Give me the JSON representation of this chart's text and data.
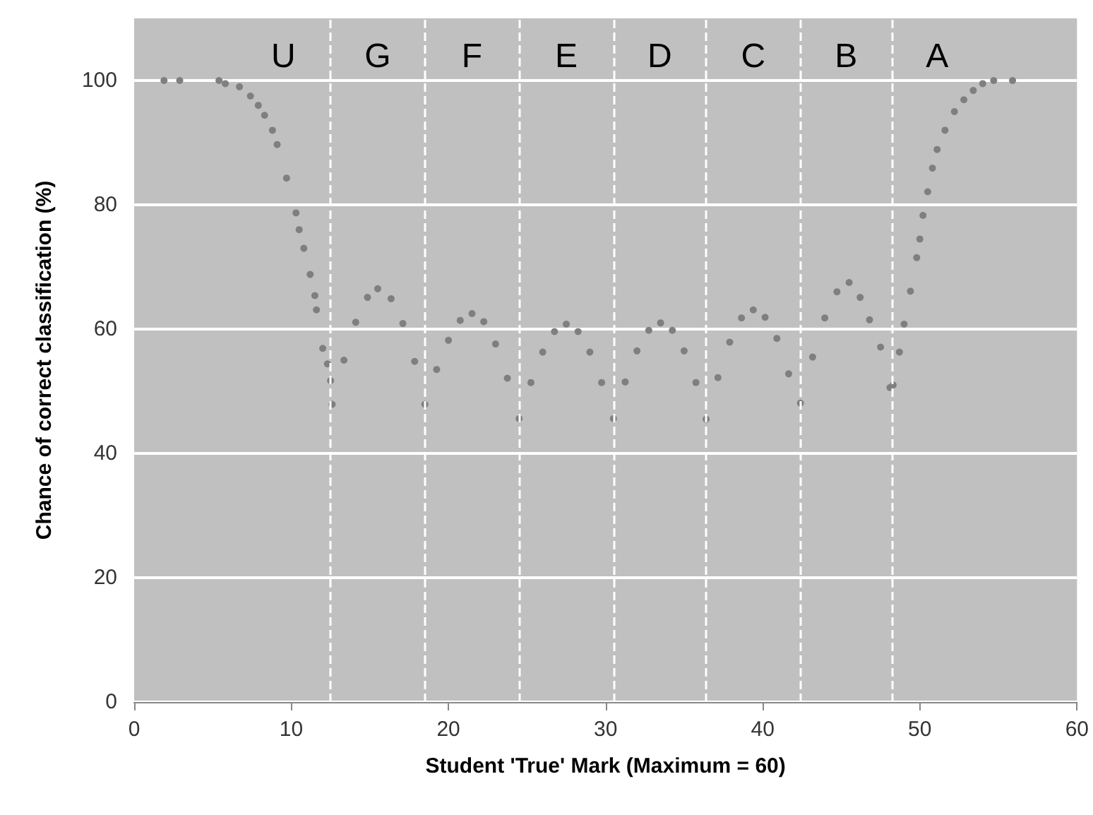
{
  "chart_data": {
    "type": "scatter",
    "xlabel": "Student 'True' Mark (Maximum = 60)",
    "ylabel": "Chance of correct classification (%)",
    "xlim": [
      0,
      60
    ],
    "xticks": [
      0,
      10,
      20,
      30,
      40,
      50,
      60
    ],
    "ylim": [
      0,
      110
    ],
    "yticks": [
      0,
      20,
      40,
      60,
      80,
      100
    ],
    "grid": "y",
    "marker": "circle",
    "series": [
      {
        "color": "#7f7f7f",
        "x": [
          1.9,
          2.9,
          5.4,
          5.8,
          6.7,
          7.4,
          7.9,
          8.3,
          8.8,
          9.1,
          9.7,
          10.3,
          10.5,
          10.8,
          11.2,
          11.5,
          11.6,
          12.0,
          12.3,
          12.5,
          12.6,
          13.35,
          14.1,
          14.85,
          15.5,
          16.35,
          17.1,
          17.85,
          18.5,
          19.25,
          20,
          20.75,
          21.5,
          22.25,
          23,
          23.75,
          24.5,
          25.25,
          26,
          26.75,
          27.5,
          28.25,
          29,
          29.75,
          30.5,
          31.25,
          32,
          32.75,
          33.5,
          34.25,
          35,
          35.75,
          36.4,
          37.15,
          37.9,
          38.65,
          39.4,
          40.15,
          40.9,
          41.65,
          42.4,
          43.175,
          43.95,
          44.725,
          45.5,
          46.2,
          46.8,
          47.5,
          48.1,
          48.3,
          48.7,
          49.0,
          49.4,
          49.8,
          50.0,
          50.2,
          50.5,
          50.8,
          51.1,
          51.6,
          52.2,
          52.8,
          53.4,
          54.0,
          54.7,
          55.9
        ],
        "values": [
          100,
          100,
          100,
          99.5,
          99,
          97.5,
          96,
          94.4,
          92,
          89.7,
          84.3,
          78.7,
          76,
          73,
          68.8,
          65.4,
          63.1,
          56.9,
          54.4,
          51.7,
          47.9,
          55.0,
          61.1,
          65.1,
          66.5,
          64.9,
          60.9,
          54.8,
          47.9,
          53.5,
          58.2,
          61.4,
          62.5,
          61.2,
          57.6,
          52.1,
          45.6,
          51.4,
          56.3,
          59.6,
          60.8,
          59.6,
          56.3,
          51.4,
          45.6,
          51.5,
          56.5,
          59.8,
          61.0,
          59.8,
          56.5,
          51.4,
          45.5,
          52.2,
          57.9,
          61.8,
          63.1,
          61.9,
          58.5,
          52.8,
          48.1,
          55.5,
          61.8,
          66.0,
          67.5,
          65.1,
          61.5,
          57.1,
          50.6,
          51,
          56.3,
          60.8,
          66.1,
          71.5,
          74.5,
          78.3,
          82.1,
          85.9,
          88.9,
          92.0,
          95.0,
          96.9,
          98.4,
          99.5,
          100,
          100
        ]
      }
    ],
    "ref_lines": [
      {
        "axis": "x",
        "value": 12.5,
        "color": "#ffffff",
        "line_style": "dashed"
      },
      {
        "axis": "x",
        "value": 18.5,
        "color": "#ffffff",
        "line_style": "dashed"
      },
      {
        "axis": "x",
        "value": 24.5,
        "color": "#ffffff",
        "line_style": "dashed"
      },
      {
        "axis": "x",
        "value": 30.5,
        "color": "#ffffff",
        "line_style": "dashed"
      },
      {
        "axis": "x",
        "value": 36.4,
        "color": "#ffffff",
        "line_style": "dashed"
      },
      {
        "axis": "x",
        "value": 42.4,
        "color": "#ffffff",
        "line_style": "dashed"
      },
      {
        "axis": "x",
        "value": 48.2,
        "color": "#ffffff",
        "line_style": "dashed"
      }
    ],
    "annotations": [
      "U",
      "G",
      "F",
      "E",
      "D",
      "C",
      "B",
      "A"
    ]
  }
}
